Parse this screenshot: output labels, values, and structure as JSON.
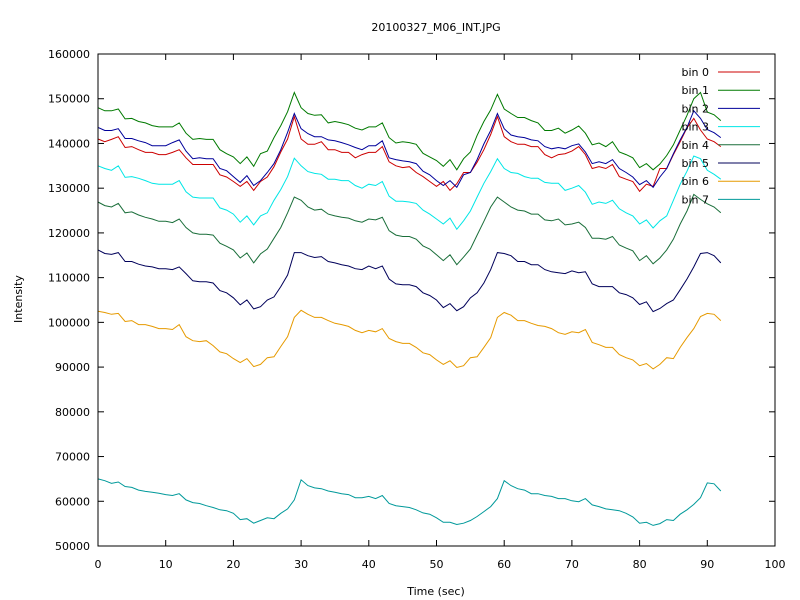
{
  "chart_data": {
    "type": "line",
    "title": "20100327_M06_INT.JPG",
    "xlabel": "Time (sec)",
    "ylabel": "Intensity",
    "xlim": [
      0,
      100
    ],
    "ylim": [
      50000,
      160000
    ],
    "xticks": [
      0,
      10,
      20,
      30,
      40,
      50,
      60,
      70,
      80,
      90,
      100
    ],
    "yticks": [
      50000,
      60000,
      70000,
      80000,
      90000,
      100000,
      110000,
      120000,
      130000,
      140000,
      150000,
      160000
    ],
    "grid": false,
    "legend": "top-right",
    "x": [
      0,
      1,
      2,
      3,
      4,
      5,
      6,
      7,
      8,
      9,
      10,
      11,
      12,
      13,
      14,
      15,
      16,
      17,
      18,
      19,
      20,
      21,
      22,
      23,
      24,
      25,
      26,
      27,
      28,
      29,
      30,
      31,
      32,
      33,
      34,
      35,
      36,
      37,
      38,
      39,
      40,
      41,
      42,
      43,
      44,
      45,
      46,
      47,
      48,
      49,
      50,
      51,
      52,
      53,
      54,
      55,
      56,
      57,
      58,
      59,
      60,
      61,
      62,
      63,
      64,
      65,
      66,
      67,
      68,
      69,
      70,
      71,
      72,
      73,
      74,
      75,
      76,
      77,
      78,
      79,
      80,
      81,
      82,
      83,
      84,
      85,
      86,
      87,
      88,
      89,
      90,
      91,
      92
    ],
    "series": [
      {
        "name": "bin 0",
        "color": "#cc0000",
        "values": [
          141000,
          140400,
          140900,
          141500,
          139100,
          139300,
          138600,
          138000,
          138000,
          137500,
          137500,
          138000,
          138600,
          136800,
          135300,
          135300,
          135300,
          135300,
          133000,
          132500,
          131500,
          130400,
          131500,
          129500,
          131500,
          132500,
          134800,
          138100,
          141000,
          146000,
          141000,
          139800,
          139800,
          140400,
          138600,
          138600,
          138000,
          138000,
          136800,
          137500,
          138000,
          138000,
          139300,
          135900,
          135000,
          134600,
          134800,
          133500,
          132600,
          131500,
          130400,
          131500,
          129500,
          131000,
          133500,
          133500,
          135800,
          138600,
          142000,
          146000,
          141500,
          140400,
          139800,
          139800,
          139300,
          139300,
          137500,
          136800,
          137500,
          137700,
          138300,
          139300,
          137500,
          134400,
          134800,
          134400,
          135300,
          132600,
          132000,
          131500,
          129300,
          130900,
          130400,
          134400,
          134400,
          137500,
          140400,
          143500,
          145600,
          143000,
          141000,
          140400,
          139300
        ]
      },
      {
        "name": "bin 1",
        "color": "#007a00",
        "values": [
          148000,
          147300,
          147300,
          147700,
          145500,
          145600,
          144900,
          144600,
          144000,
          143700,
          143700,
          143700,
          144600,
          142300,
          140900,
          141100,
          140900,
          140900,
          138600,
          137700,
          137000,
          135500,
          137000,
          134900,
          137700,
          138300,
          141300,
          144000,
          147100,
          151400,
          148000,
          146700,
          146300,
          146400,
          144600,
          144900,
          144600,
          144200,
          143400,
          143000,
          143700,
          143700,
          144600,
          141300,
          140100,
          140400,
          140200,
          139800,
          137800,
          137000,
          136200,
          134900,
          136400,
          134100,
          136600,
          138100,
          141800,
          144900,
          147500,
          151000,
          147700,
          146700,
          145800,
          145800,
          145100,
          144600,
          142900,
          142900,
          143400,
          142300,
          143000,
          143900,
          142300,
          139700,
          140100,
          139300,
          140400,
          138100,
          137500,
          136800,
          134600,
          135500,
          134100,
          135400,
          137300,
          139700,
          143000,
          146300,
          150000,
          151400,
          147000,
          146400,
          145100
        ]
      },
      {
        "name": "bin 2",
        "color": "#00009a",
        "values": [
          143600,
          142900,
          142900,
          143300,
          141100,
          141100,
          140600,
          140200,
          139500,
          139500,
          139500,
          140200,
          140800,
          138300,
          136600,
          136800,
          136600,
          136600,
          134400,
          133900,
          132600,
          131300,
          132800,
          130600,
          131700,
          133500,
          135500,
          138600,
          142500,
          146700,
          143300,
          142200,
          141500,
          141500,
          140800,
          140600,
          140200,
          139700,
          139100,
          138600,
          139500,
          139500,
          140600,
          136800,
          136400,
          136100,
          135900,
          135500,
          133800,
          133000,
          131700,
          130600,
          131700,
          130200,
          133000,
          133500,
          136400,
          139900,
          142900,
          146700,
          143300,
          141900,
          141500,
          141300,
          140800,
          140600,
          139300,
          138800,
          139100,
          138800,
          139500,
          139900,
          138100,
          135500,
          135900,
          135500,
          136400,
          134400,
          133500,
          132500,
          130800,
          131700,
          130200,
          132500,
          134400,
          137700,
          140800,
          143600,
          147300,
          145600,
          143100,
          142400,
          141300
        ]
      },
      {
        "name": "bin 3",
        "color": "#00e6e6",
        "values": [
          135000,
          134400,
          134000,
          135000,
          132400,
          132600,
          132200,
          131700,
          131100,
          130900,
          130900,
          130900,
          131700,
          129200,
          128000,
          127800,
          127800,
          127800,
          125600,
          125100,
          124200,
          122400,
          123800,
          121800,
          123800,
          124500,
          127300,
          129700,
          132600,
          136700,
          135000,
          133700,
          133300,
          133100,
          132000,
          132000,
          131700,
          131700,
          130600,
          130000,
          130900,
          130600,
          131500,
          128200,
          127100,
          127100,
          126900,
          126600,
          125100,
          124200,
          123100,
          122000,
          123300,
          120800,
          122700,
          124900,
          128000,
          131100,
          133700,
          136600,
          134400,
          133500,
          133300,
          132600,
          132200,
          132200,
          131300,
          131100,
          131100,
          129500,
          130000,
          130600,
          129100,
          126400,
          126900,
          126600,
          127300,
          125400,
          124500,
          123800,
          122000,
          122900,
          121100,
          122700,
          123800,
          127300,
          130900,
          133800,
          137200,
          136600,
          134000,
          133100,
          132000
        ]
      },
      {
        "name": "bin 4",
        "color": "#1a6e3a",
        "values": [
          126900,
          126100,
          125800,
          126600,
          124500,
          124700,
          124000,
          123500,
          123100,
          122600,
          122600,
          122300,
          123100,
          121200,
          120000,
          119700,
          119700,
          119500,
          117700,
          117000,
          116200,
          114400,
          115500,
          113300,
          115300,
          116400,
          118800,
          121200,
          124500,
          128000,
          127300,
          125800,
          125100,
          125300,
          124200,
          123800,
          123500,
          123300,
          122700,
          122400,
          123100,
          122900,
          123500,
          120500,
          119500,
          119200,
          119200,
          118600,
          117100,
          116400,
          115100,
          113800,
          115100,
          112900,
          114600,
          116400,
          119500,
          122600,
          125800,
          128000,
          126900,
          125800,
          125100,
          124900,
          124200,
          124200,
          122900,
          122700,
          123100,
          121800,
          122000,
          122400,
          121200,
          118800,
          118800,
          118600,
          119200,
          117300,
          116600,
          116000,
          113800,
          114900,
          113100,
          114400,
          116200,
          118600,
          122000,
          124900,
          128600,
          127500,
          126500,
          125800,
          124500
        ]
      },
      {
        "name": "bin 5",
        "color": "#00005a",
        "values": [
          116200,
          115400,
          115200,
          115600,
          113600,
          113600,
          113000,
          112600,
          112400,
          112000,
          112000,
          111800,
          112400,
          110900,
          109300,
          109100,
          109100,
          108800,
          107100,
          106600,
          105500,
          103900,
          105000,
          103000,
          103500,
          105000,
          105700,
          108000,
          110600,
          115600,
          115600,
          114900,
          114500,
          114700,
          113600,
          113300,
          112900,
          112600,
          112000,
          111800,
          112600,
          112000,
          112600,
          109700,
          108600,
          108400,
          108400,
          108000,
          106600,
          106000,
          105000,
          103300,
          104200,
          102600,
          103500,
          105500,
          106600,
          108800,
          111800,
          115600,
          115400,
          114900,
          113600,
          113600,
          112900,
          112900,
          111800,
          111300,
          111100,
          110900,
          111500,
          111100,
          111300,
          108600,
          108000,
          108000,
          108000,
          106600,
          106200,
          105500,
          104000,
          104600,
          102400,
          103100,
          104200,
          105000,
          107300,
          109700,
          112400,
          115400,
          115600,
          114900,
          113300
        ]
      },
      {
        "name": "bin 6",
        "color": "#e69a00",
        "values": [
          102500,
          102200,
          101800,
          102000,
          100200,
          100400,
          99500,
          99500,
          99100,
          98600,
          98600,
          98400,
          99500,
          96800,
          95900,
          95700,
          95900,
          94800,
          93400,
          93000,
          91900,
          91000,
          91900,
          90100,
          90600,
          92100,
          92300,
          94600,
          96800,
          101100,
          102700,
          101800,
          101100,
          101100,
          100400,
          99800,
          99500,
          99100,
          98200,
          97700,
          98200,
          97900,
          98600,
          96400,
          95700,
          95300,
          95300,
          94400,
          93200,
          92800,
          91600,
          90600,
          91400,
          89900,
          90300,
          92100,
          92300,
          94400,
          96600,
          101100,
          102200,
          101600,
          100400,
          100400,
          99800,
          99300,
          99100,
          98600,
          97700,
          97300,
          97900,
          97700,
          98400,
          95500,
          95000,
          94400,
          94400,
          92800,
          92100,
          91600,
          90300,
          90800,
          89600,
          90600,
          92100,
          91900,
          94400,
          96600,
          98600,
          101300,
          102000,
          101800,
          100400
        ]
      },
      {
        "name": "bin 7",
        "color": "#00999a",
        "values": [
          65000,
          64600,
          64000,
          64300,
          63300,
          63100,
          62500,
          62200,
          62000,
          61800,
          61500,
          61300,
          61700,
          60300,
          59700,
          59500,
          59000,
          58600,
          58100,
          57900,
          57300,
          55900,
          56100,
          55100,
          55700,
          56300,
          56100,
          57300,
          58300,
          60300,
          64800,
          63500,
          63000,
          62800,
          62300,
          62000,
          61700,
          61500,
          60800,
          60800,
          61100,
          60600,
          61300,
          59500,
          59000,
          58800,
          58600,
          58100,
          57400,
          57100,
          56300,
          55300,
          55300,
          54800,
          55100,
          55700,
          56600,
          57700,
          58800,
          60600,
          64600,
          63500,
          62800,
          62500,
          61700,
          61700,
          61300,
          61100,
          60600,
          60600,
          60100,
          59900,
          60600,
          59200,
          58800,
          58300,
          58100,
          57900,
          57300,
          56500,
          55100,
          55300,
          54600,
          55000,
          55900,
          55700,
          57100,
          58100,
          59300,
          60800,
          64100,
          63900,
          62300
        ]
      }
    ]
  }
}
